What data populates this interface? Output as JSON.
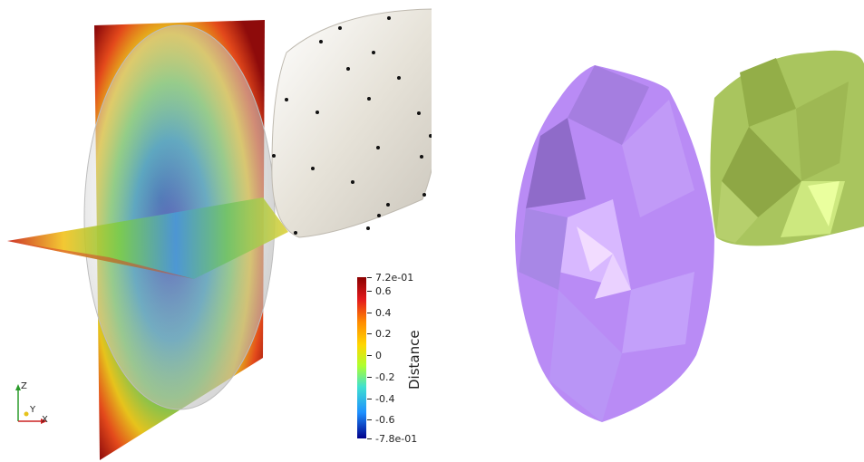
{
  "left_view": {
    "colorbar": {
      "title": "Distance",
      "max_label": "7.2e-01",
      "min_label": "-7.8e-01",
      "ticks": [
        "0.6",
        "0.4",
        "0.2",
        "0",
        "-0.2",
        "-0.4",
        "-0.6"
      ],
      "colors": [
        "#8b0000",
        "#e41a1c",
        "#ff8c00",
        "#ffd700",
        "#adff2f",
        "#40e0d0",
        "#1e90ff",
        "#00008b"
      ]
    },
    "axes": {
      "x_label": "X",
      "y_label": "Y",
      "z_label": "Z"
    }
  },
  "right_view": {
    "shapes": [
      {
        "name": "purple-mesh",
        "color": "#b98bf5"
      },
      {
        "name": "green-mesh",
        "color": "#a6c15a"
      }
    ]
  }
}
